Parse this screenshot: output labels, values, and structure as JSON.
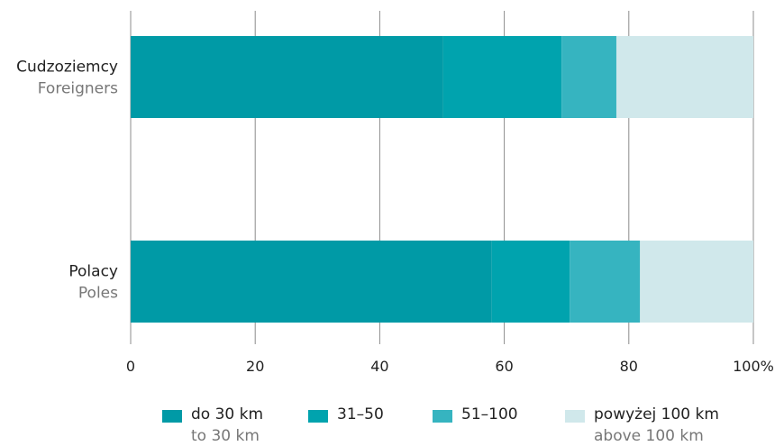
{
  "chart_data": {
    "type": "bar",
    "orientation": "horizontal",
    "stacked": true,
    "title": "",
    "xlabel": "",
    "ylabel": "",
    "xlim": [
      0,
      100
    ],
    "x_ticks": [
      0,
      20,
      40,
      60,
      80,
      100
    ],
    "x_tick_labels": [
      "0",
      "20",
      "40",
      "60",
      "80",
      "100%"
    ],
    "grid": true,
    "legend_position": "bottom",
    "categories": [
      {
        "label": "Cudzoziemcy",
        "sublabel": "Foreigners"
      },
      {
        "label": "Polacy",
        "sublabel": "Poles"
      }
    ],
    "series": [
      {
        "name": "do 30 km",
        "subname": "to 30 km",
        "color": "#009aa6",
        "values": [
          50.2,
          58.0
        ]
      },
      {
        "name": "31–50",
        "subname": "",
        "color": "#00a3ae",
        "values": [
          19.0,
          12.5
        ]
      },
      {
        "name": "51–100",
        "subname": "",
        "color": "#36b4c0",
        "values": [
          8.8,
          11.3
        ]
      },
      {
        "name": "powyżej 100 km",
        "subname": "above 100 km",
        "color": "#d0e8eb",
        "values": [
          22.0,
          18.2
        ]
      }
    ]
  }
}
